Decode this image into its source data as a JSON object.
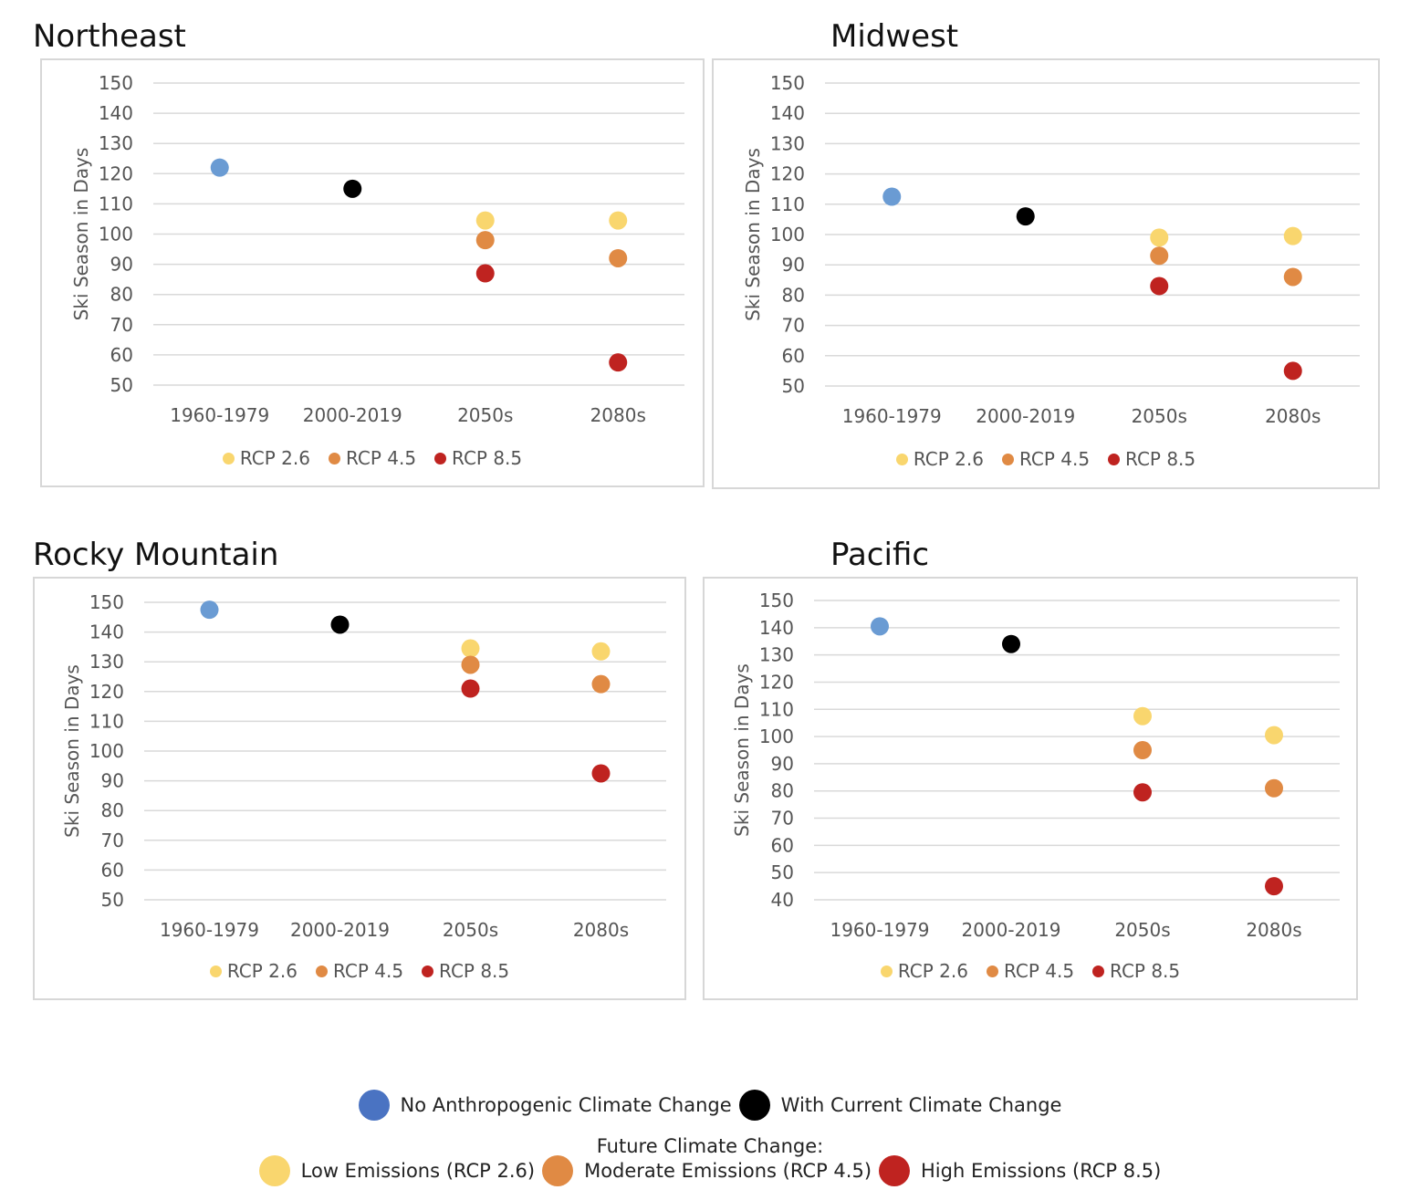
{
  "chart_data": [
    {
      "type": "scatter",
      "title": "Northeast",
      "ylabel": "Ski Season in Days",
      "ylim": [
        50,
        150
      ],
      "yticks": [
        50,
        60,
        70,
        80,
        90,
        100,
        110,
        120,
        130,
        140,
        150
      ],
      "categories": [
        "1960-1979",
        "2000-2019",
        "2050s",
        "2080s"
      ],
      "series": [
        {
          "name": "No Anthropogenic Climate Change",
          "color": "#6a9bd3",
          "values": [
            122,
            null,
            null,
            null
          ]
        },
        {
          "name": "With Current Climate Change",
          "color": "#000000",
          "values": [
            null,
            115,
            null,
            null
          ]
        },
        {
          "name": "RCP 2.6",
          "color": "#f9d66e",
          "values": [
            null,
            null,
            104.5,
            104.5
          ]
        },
        {
          "name": "RCP 4.5",
          "color": "#e08a44",
          "values": [
            null,
            null,
            98,
            92
          ]
        },
        {
          "name": "RCP 8.5",
          "color": "#bf2320",
          "values": [
            null,
            null,
            87,
            57.5
          ]
        }
      ],
      "legend": [
        "RCP 2.6",
        "RCP 4.5",
        "RCP 8.5"
      ],
      "legend_position": "bottom",
      "grid": true
    },
    {
      "type": "scatter",
      "title": "Midwest",
      "ylabel": "Ski Season in Days",
      "ylim": [
        50,
        150
      ],
      "yticks": [
        50,
        60,
        70,
        80,
        90,
        100,
        110,
        120,
        130,
        140,
        150
      ],
      "categories": [
        "1960-1979",
        "2000-2019",
        "2050s",
        "2080s"
      ],
      "series": [
        {
          "name": "No Anthropogenic Climate Change",
          "color": "#6a9bd3",
          "values": [
            112.5,
            null,
            null,
            null
          ]
        },
        {
          "name": "With Current Climate Change",
          "color": "#000000",
          "values": [
            null,
            106,
            null,
            null
          ]
        },
        {
          "name": "RCP 2.6",
          "color": "#f9d66e",
          "values": [
            null,
            null,
            99,
            99.5
          ]
        },
        {
          "name": "RCP 4.5",
          "color": "#e08a44",
          "values": [
            null,
            null,
            93,
            86
          ]
        },
        {
          "name": "RCP 8.5",
          "color": "#bf2320",
          "values": [
            null,
            null,
            83,
            55
          ]
        }
      ],
      "legend": [
        "RCP 2.6",
        "RCP 4.5",
        "RCP 8.5"
      ],
      "legend_position": "bottom",
      "grid": true
    },
    {
      "type": "scatter",
      "title": "Rocky Mountain",
      "ylabel": "Ski Season in Days",
      "ylim": [
        50,
        150
      ],
      "yticks": [
        50,
        60,
        70,
        80,
        90,
        100,
        110,
        120,
        130,
        140,
        150
      ],
      "categories": [
        "1960-1979",
        "2000-2019",
        "2050s",
        "2080s"
      ],
      "series": [
        {
          "name": "No Anthropogenic Climate Change",
          "color": "#6a9bd3",
          "values": [
            147.5,
            null,
            null,
            null
          ]
        },
        {
          "name": "With Current Climate Change",
          "color": "#000000",
          "values": [
            null,
            142.5,
            null,
            null
          ]
        },
        {
          "name": "RCP 2.6",
          "color": "#f9d66e",
          "values": [
            null,
            null,
            134.5,
            133.5
          ]
        },
        {
          "name": "RCP 4.5",
          "color": "#e08a44",
          "values": [
            null,
            null,
            129,
            122.5
          ]
        },
        {
          "name": "RCP 8.5",
          "color": "#bf2320",
          "values": [
            null,
            null,
            121,
            92.5
          ]
        }
      ],
      "legend": [
        "RCP 2.6",
        "RCP 4.5",
        "RCP 8.5"
      ],
      "legend_position": "bottom",
      "grid": true
    },
    {
      "type": "scatter",
      "title": "Pacific",
      "ylabel": "Ski Season in Days",
      "ylim": [
        40,
        150
      ],
      "yticks": [
        40,
        50,
        60,
        70,
        80,
        90,
        100,
        110,
        120,
        130,
        140,
        150
      ],
      "categories": [
        "1960-1979",
        "2000-2019",
        "2050s",
        "2080s"
      ],
      "series": [
        {
          "name": "No Anthropogenic Climate Change",
          "color": "#6a9bd3",
          "values": [
            140.5,
            null,
            null,
            null
          ]
        },
        {
          "name": "With Current Climate Change",
          "color": "#000000",
          "values": [
            null,
            134,
            null,
            null
          ]
        },
        {
          "name": "RCP 2.6",
          "color": "#f9d66e",
          "values": [
            null,
            null,
            107.5,
            100.5
          ]
        },
        {
          "name": "RCP 4.5",
          "color": "#e08a44",
          "values": [
            null,
            null,
            95,
            81
          ]
        },
        {
          "name": "RCP 8.5",
          "color": "#bf2320",
          "values": [
            null,
            null,
            79.5,
            45
          ]
        }
      ],
      "legend": [
        "RCP 2.6",
        "RCP 4.5",
        "RCP 8.5"
      ],
      "legend_position": "bottom",
      "grid": true
    }
  ],
  "key": {
    "row1": [
      {
        "label": "No Anthropogenic Climate Change",
        "color": "#4a73c2"
      },
      {
        "label": "With Current Climate Change",
        "color": "#000000"
      }
    ],
    "subtitle": "Future Climate Change:",
    "row2": [
      {
        "label": "Low Emissions (RCP 2.6)",
        "color": "#f9d66e"
      },
      {
        "label": "Moderate Emissions (RCP 4.5)",
        "color": "#e08a44"
      },
      {
        "label": "High Emissions (RCP 8.5)",
        "color": "#bf2320"
      }
    ]
  }
}
